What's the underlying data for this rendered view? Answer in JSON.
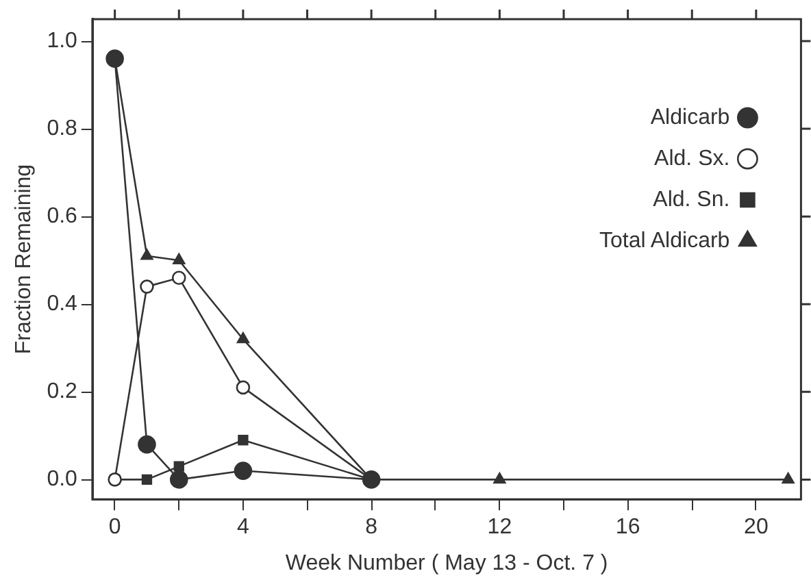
{
  "chart_data": {
    "type": "line",
    "xlabel": "Week Number ( May 13 - Oct. 7 )",
    "ylabel": "Fraction Remaining",
    "xlim": [
      -0.7,
      21.4
    ],
    "ylim": [
      -0.045,
      1.05
    ],
    "xticks": [
      0,
      {
        "value": 2,
        "label": null
      },
      4,
      {
        "value": 6,
        "label": null
      },
      8,
      {
        "value": 10,
        "label": null
      },
      12,
      {
        "value": 14,
        "label": null
      },
      16,
      {
        "value": 18,
        "label": null
      },
      20
    ],
    "yticks": [
      {
        "value": 0,
        "label": "0.0"
      },
      {
        "value": 0.2,
        "label": "0.2"
      },
      {
        "value": 0.4,
        "label": "0.4"
      },
      {
        "value": 0.6,
        "label": "0.6"
      },
      {
        "value": 0.8,
        "label": "0.8"
      },
      {
        "value": 1,
        "label": "1.0"
      }
    ],
    "legend": "top right",
    "grid": false,
    "line_style": "solid",
    "series": [
      {
        "name": "Aldicarb",
        "color": "#333333",
        "marker": "circle",
        "x": [
          0,
          1,
          2,
          4,
          8
        ],
        "values": [
          0.96,
          0.08,
          0,
          0.02,
          0
        ]
      },
      {
        "name": "Ald. Sx.",
        "color": "#ffffff",
        "marker": "circle",
        "x": [
          0,
          1,
          2,
          4,
          8
        ],
        "values": [
          0,
          0.44,
          0.46,
          0.21,
          0
        ]
      },
      {
        "name": "Ald. Sn.",
        "color": "#333333",
        "marker": "square",
        "x": [
          0,
          1,
          2,
          4,
          8
        ],
        "values": [
          0,
          0,
          0.03,
          0.09,
          0
        ]
      },
      {
        "name": "Total Aldicarb",
        "color": "#333333",
        "marker": "triangle",
        "x": [
          0,
          1,
          2,
          4,
          8,
          12,
          21
        ],
        "values": [
          0.96,
          0.51,
          0.5,
          0.32,
          0,
          0,
          0
        ]
      }
    ]
  }
}
